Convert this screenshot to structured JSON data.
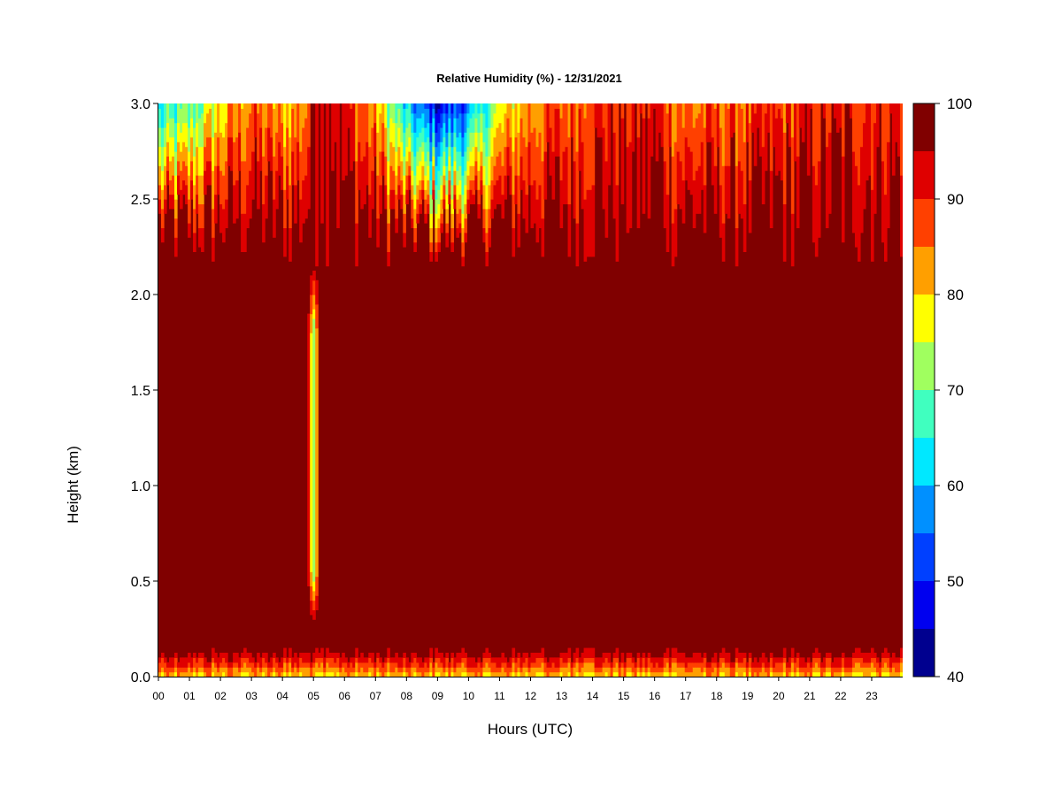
{
  "chart_data": {
    "type": "heatmap",
    "title": "Relative Humidity (%) - 12/31/2021",
    "xlabel": "Hours (UTC)",
    "ylabel": "Height (km)",
    "x_range": [
      0,
      24
    ],
    "ylim": [
      0.0,
      3.0
    ],
    "x_tick_labels": [
      "00",
      "01",
      "02",
      "03",
      "04",
      "05",
      "06",
      "07",
      "08",
      "09",
      "10",
      "11",
      "12",
      "13",
      "14",
      "15",
      "16",
      "17",
      "18",
      "19",
      "20",
      "21",
      "22",
      "23"
    ],
    "y_tick_labels": [
      "0.0",
      "0.5",
      "1.0",
      "1.5",
      "2.0",
      "2.5",
      "3.0"
    ],
    "y_ticks": [
      0.0,
      0.5,
      1.0,
      1.5,
      2.0,
      2.5,
      3.0
    ],
    "colorbar": {
      "min": 40,
      "max": 100,
      "tick_labels": [
        "40",
        "50",
        "60",
        "70",
        "80",
        "90",
        "100"
      ],
      "ticks": [
        40,
        50,
        60,
        70,
        80,
        90,
        100
      ],
      "levels": [
        {
          "from": 40,
          "to": 45,
          "color": "#00008f"
        },
        {
          "from": 45,
          "to": 50,
          "color": "#0000ef"
        },
        {
          "from": 50,
          "to": 55,
          "color": "#0040ff"
        },
        {
          "from": 55,
          "to": 60,
          "color": "#0090ff"
        },
        {
          "from": 60,
          "to": 65,
          "color": "#00e8ff"
        },
        {
          "from": 65,
          "to": 70,
          "color": "#40ffbf"
        },
        {
          "from": 70,
          "to": 75,
          "color": "#a0ff5f"
        },
        {
          "from": 75,
          "to": 80,
          "color": "#ffff00"
        },
        {
          "from": 80,
          "to": 85,
          "color": "#ff9f00"
        },
        {
          "from": 85,
          "to": 90,
          "color": "#ff4000"
        },
        {
          "from": 90,
          "to": 95,
          "color": "#df0000"
        },
        {
          "from": 95,
          "to": 100,
          "color": "#800000"
        }
      ]
    },
    "field_sketch": {
      "background_rh": 100,
      "surface_layer": {
        "height_km": 0.15,
        "rh_at_surface": 80
      },
      "upper_dry_layer_base_km": 2.3,
      "rh_at_top_by_hour": [
        {
          "hour": 0,
          "rh": 62
        },
        {
          "hour": 1,
          "rh": 68
        },
        {
          "hour": 2,
          "rh": 78
        },
        {
          "hour": 3,
          "rh": 86
        },
        {
          "hour": 4,
          "rh": 80
        },
        {
          "hour": 4.8,
          "rh": 85
        },
        {
          "hour": 5,
          "rh": 98
        },
        {
          "hour": 5.5,
          "rh": 98
        },
        {
          "hour": 6,
          "rh": 90
        },
        {
          "hour": 7,
          "rh": 82
        },
        {
          "hour": 8,
          "rh": 60
        },
        {
          "hour": 9,
          "rh": 47
        },
        {
          "hour": 10,
          "rh": 55
        },
        {
          "hour": 11,
          "rh": 75
        },
        {
          "hour": 12,
          "rh": 84
        },
        {
          "hour": 13,
          "rh": 86
        },
        {
          "hour": 14,
          "rh": 90
        },
        {
          "hour": 15,
          "rh": 91
        },
        {
          "hour": 16,
          "rh": 92
        },
        {
          "hour": 17,
          "rh": 84
        },
        {
          "hour": 18,
          "rh": 86
        },
        {
          "hour": 19,
          "rh": 86
        },
        {
          "hour": 20,
          "rh": 88
        },
        {
          "hour": 21,
          "rh": 90
        },
        {
          "hour": 22,
          "rh": 91
        },
        {
          "hour": 23,
          "rh": 91
        },
        {
          "hour": 24,
          "rh": 91
        }
      ],
      "dry_column": {
        "hour_start": 4.8,
        "hour_end": 5.2,
        "height_from_km": 0.25,
        "height_to_km": 2.2,
        "rh_min": 68
      }
    }
  }
}
